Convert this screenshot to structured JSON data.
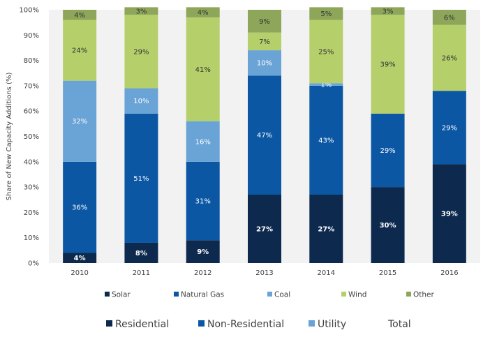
{
  "chart_data": {
    "type": "bar",
    "stacked": true,
    "ylabel": "Share of New Capacity Additions (%)",
    "xlabel": "",
    "ylim": [
      0,
      100
    ],
    "yticks": [
      "0%",
      "10%",
      "20%",
      "30%",
      "40%",
      "50%",
      "60%",
      "70%",
      "80%",
      "90%",
      "100%"
    ],
    "categories": [
      "2010",
      "2011",
      "2012",
      "2013",
      "2014",
      "2015",
      "2016"
    ],
    "series": [
      {
        "name": "Solar",
        "color": "#0d2a4e",
        "label_color": "#ffffff",
        "bold": true,
        "values": [
          4,
          8,
          9,
          27,
          27,
          30,
          39
        ],
        "labels": [
          "4%",
          "8%",
          "9%",
          "27%",
          "27%",
          "30%",
          "39%"
        ]
      },
      {
        "name": "Natural Gas",
        "color": "#0b57a4",
        "label_color": "#ffffff",
        "bold": false,
        "values": [
          36,
          51,
          31,
          47,
          43,
          29,
          29
        ],
        "labels": [
          "36%",
          "51%",
          "31%",
          "47%",
          "43%",
          "29%",
          "29%"
        ]
      },
      {
        "name": "Coal",
        "color": "#6aa3d6",
        "label_color": "#ffffff",
        "bold": false,
        "values": [
          32,
          10,
          16,
          10,
          1,
          0,
          0
        ],
        "labels": [
          "32%",
          "10%",
          "16%",
          "10%",
          "1%",
          "",
          ""
        ]
      },
      {
        "name": "Wind",
        "color": "#b5cf6b",
        "label_color": "#333333",
        "bold": false,
        "values": [
          24,
          29,
          41,
          7,
          25,
          39,
          26
        ],
        "labels": [
          "24%",
          "29%",
          "41%",
          "7%",
          "25%",
          "39%",
          "26%"
        ]
      },
      {
        "name": "Other",
        "color": "#8ea65a",
        "label_color": "#333333",
        "bold": false,
        "values": [
          4,
          3,
          4,
          9,
          5,
          3,
          6
        ],
        "labels": [
          "4%",
          "3%",
          "4%",
          "9%",
          "5%",
          "3%",
          "6%"
        ]
      }
    ],
    "legend": [
      "Solar",
      "Natural Gas",
      "Coal",
      "Wind",
      "Other"
    ],
    "legend2": [
      {
        "name": "Residential",
        "color": "#0d2a4e"
      },
      {
        "name": "Non-Residential",
        "color": "#0b57a4"
      },
      {
        "name": "Utility",
        "color": "#6aa3d6"
      },
      {
        "name": "Total",
        "color": ""
      }
    ],
    "background_color": "#f2f2f2"
  }
}
